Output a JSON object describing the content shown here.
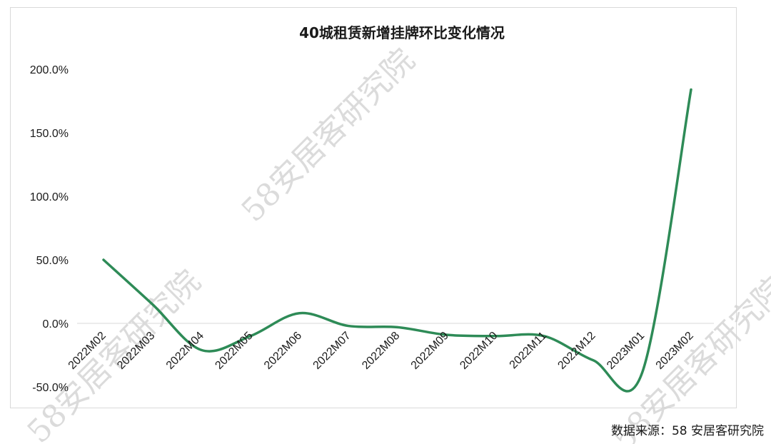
{
  "source_note": "数据来源：58 安居客研究院",
  "watermark": "58安居客研究院",
  "colors": {
    "line": "#2e8b57",
    "grid": "#d9d9d9",
    "text": "#1a1a1a"
  },
  "chart_data": {
    "type": "line",
    "title": "40城租赁新增挂牌环比变化情况",
    "xlabel": "",
    "ylabel": "",
    "ylim": [
      -50,
      200
    ],
    "yticks": [
      200,
      150,
      100,
      50,
      0,
      -50
    ],
    "ytick_labels": [
      "200.0%",
      "150.0%",
      "100.0%",
      "50.0%",
      "0.0%",
      "-50.0%"
    ],
    "categories": [
      "2022M02",
      "2022M03",
      "2022M04",
      "2022M05",
      "2022M06",
      "2022M07",
      "2022M08",
      "2022M09",
      "2022M10",
      "2022M11",
      "2022M12",
      "2023M01",
      "2023M02"
    ],
    "series": [
      {
        "values": [
          50,
          15,
          -21,
          -10,
          8,
          -2,
          -3,
          -9,
          -10,
          -10,
          -29,
          -39,
          184
        ]
      }
    ],
    "smooth": true,
    "grid": false,
    "legend": "none"
  }
}
